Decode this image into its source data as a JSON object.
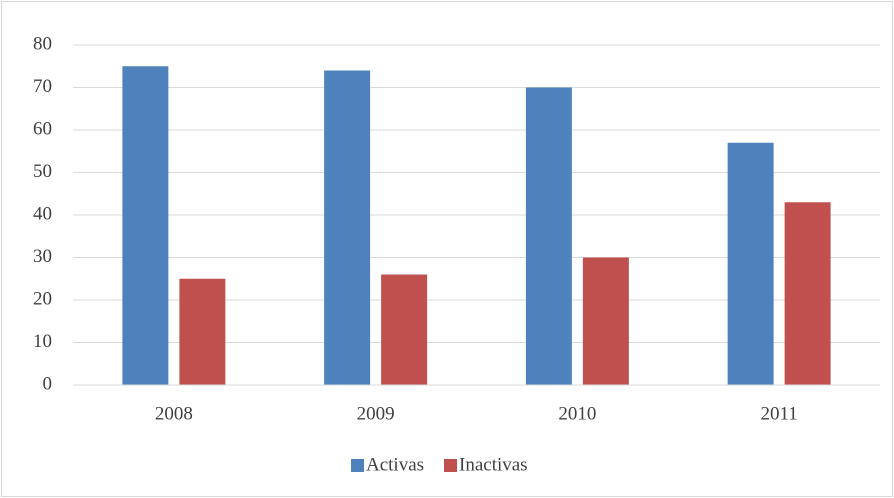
{
  "chart_data": {
    "type": "bar",
    "categories": [
      "2008",
      "2009",
      "2010",
      "2011"
    ],
    "series": [
      {
        "name": "Activas",
        "color": "#4f81bd",
        "values": [
          75,
          74,
          70,
          57
        ]
      },
      {
        "name": "Inactivas",
        "color": "#c0504d",
        "values": [
          25,
          26,
          30,
          43
        ]
      }
    ],
    "ylim": [
      0,
      80
    ],
    "yticks": [
      0,
      10,
      20,
      30,
      40,
      50,
      60,
      70,
      80
    ],
    "grid": true,
    "legend": "bottom"
  }
}
